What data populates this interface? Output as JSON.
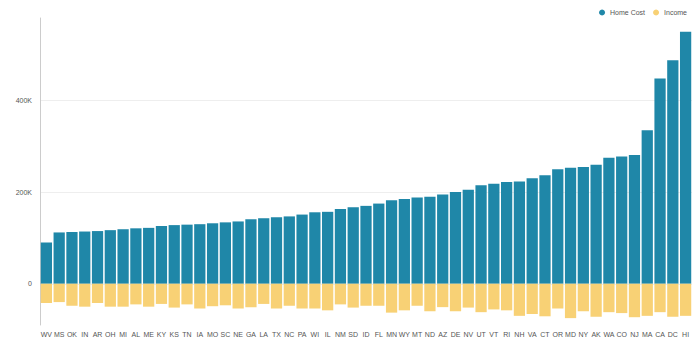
{
  "chart_data": {
    "type": "bar",
    "categories": [
      "WV",
      "MS",
      "OK",
      "IN",
      "AR",
      "OH",
      "MI",
      "AL",
      "ME",
      "KY",
      "KS",
      "TN",
      "IA",
      "MO",
      "SC",
      "NE",
      "GA",
      "LA",
      "TX",
      "NC",
      "PA",
      "WI",
      "IL",
      "NM",
      "SD",
      "ID",
      "FL",
      "MN",
      "WY",
      "MT",
      "ND",
      "AZ",
      "DE",
      "NV",
      "UT",
      "VT",
      "RI",
      "NH",
      "VA",
      "CT",
      "OR",
      "MD",
      "NY",
      "AK",
      "WA",
      "CO",
      "NJ",
      "MA",
      "CA",
      "DC",
      "HI"
    ],
    "series": [
      {
        "name": "Home Cost",
        "color": "#1f87a8",
        "values": [
          90000,
          112000,
          113000,
          114000,
          115000,
          117000,
          119000,
          121000,
          122000,
          126000,
          128000,
          129000,
          130000,
          132000,
          134000,
          136000,
          141000,
          143000,
          145000,
          147000,
          151000,
          156000,
          157000,
          163000,
          167000,
          170000,
          175000,
          182000,
          185000,
          188000,
          190000,
          195000,
          200000,
          205000,
          215000,
          218000,
          222000,
          223000,
          230000,
          237000,
          250000,
          253000,
          255000,
          260000,
          275000,
          278000,
          281000,
          335000,
          448000,
          488000,
          550000
        ]
      },
      {
        "name": "Income",
        "color": "#f8d175",
        "values": [
          -42000,
          -40000,
          -48000,
          -50000,
          -42000,
          -50000,
          -50000,
          -45000,
          -50000,
          -44000,
          -52000,
          -45000,
          -54000,
          -49000,
          -47000,
          -54000,
          -51000,
          -44000,
          -54000,
          -48000,
          -54000,
          -54000,
          -58000,
          -45000,
          -52000,
          -48000,
          -48000,
          -63000,
          -58000,
          -48000,
          -60000,
          -51000,
          -60000,
          -52000,
          -62000,
          -56000,
          -58000,
          -70000,
          -66000,
          -71000,
          -54000,
          -75000,
          -60000,
          -72000,
          -62000,
          -64000,
          -73000,
          -70000,
          -62000,
          -72000,
          -70000
        ]
      }
    ],
    "ylim": [
      -90000,
      580000
    ],
    "yticks": [
      0,
      {
        "value": 200000,
        "label": "200K"
      },
      {
        "value": 400000,
        "label": "400K"
      }
    ],
    "stacked": true,
    "grid": true,
    "legend": "top-right"
  }
}
